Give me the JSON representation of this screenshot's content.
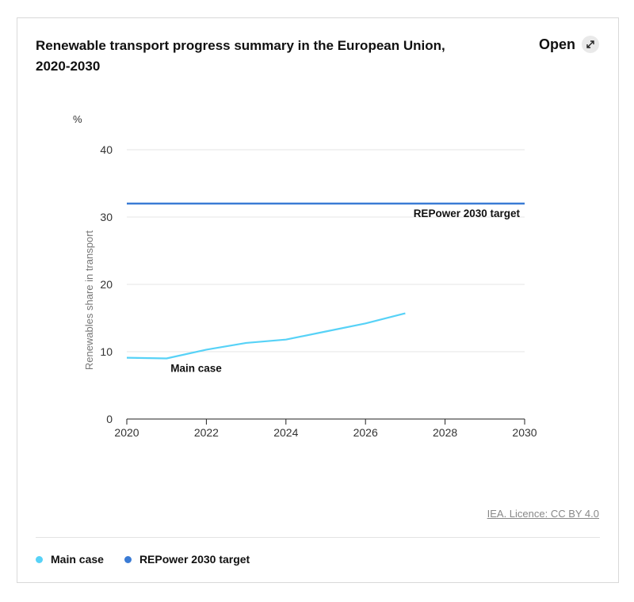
{
  "header": {
    "title": "Renewable transport progress summary in the European Union, 2020-2030",
    "open_label": "Open"
  },
  "footer": {
    "licence": "IEA. Licence: CC BY 4.0"
  },
  "colors": {
    "main_case": "#57d2f7",
    "target": "#3a7bd5",
    "grid": "#e6e6e6",
    "axis": "#222222"
  },
  "chart_data": {
    "type": "line",
    "unit_label": "%",
    "ylabel": "Renewables share in transport",
    "xlabel": "",
    "xlim": [
      2020,
      2030
    ],
    "ylim": [
      0,
      40
    ],
    "x_ticks": [
      2020,
      2022,
      2024,
      2026,
      2028,
      2030
    ],
    "y_ticks": [
      0,
      10,
      20,
      30,
      40
    ],
    "grid": true,
    "series": [
      {
        "name": "Main case",
        "color": "#57d2f7",
        "x": [
          2020,
          2021,
          2022,
          2023,
          2024,
          2025,
          2026,
          2027
        ],
        "y": [
          9.1,
          9.0,
          10.3,
          11.3,
          11.8,
          13.0,
          14.2,
          15.7
        ]
      },
      {
        "name": "REPower 2030 target",
        "color": "#3a7bd5",
        "x": [
          2020,
          2030
        ],
        "y": [
          32,
          32
        ]
      }
    ],
    "annotations": [
      {
        "text": "REPower 2030 target"
      },
      {
        "text": "Main case"
      }
    ]
  },
  "legend": [
    {
      "label": "Main case",
      "color": "#57d2f7"
    },
    {
      "label": "REPower 2030 target",
      "color": "#3a7bd5"
    }
  ]
}
